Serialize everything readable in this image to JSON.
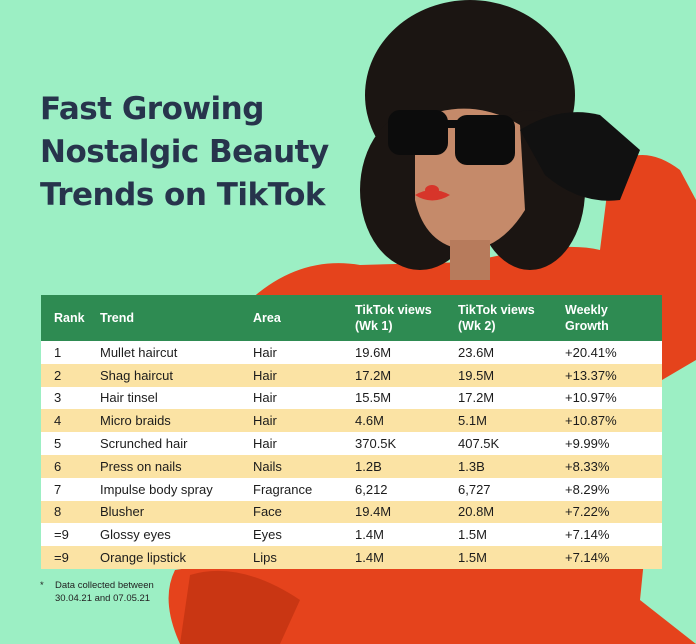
{
  "title": [
    "Fast Growing",
    "Nostalgic Beauty",
    "Trends on TikTok"
  ],
  "colors": {
    "background": "#9cefc4",
    "header": "#2e8b52",
    "row_alt": "#fbe3a4",
    "title": "#27344c"
  },
  "chart_data": {
    "type": "table",
    "columns": [
      "Rank",
      "Trend",
      "Area",
      "TikTok views (Wk 1)",
      "TikTok views (Wk 2)",
      "Weekly Growth"
    ],
    "rows": [
      [
        "1",
        "Mullet haircut",
        "Hair",
        "19.6M",
        "23.6M",
        "+20.41%"
      ],
      [
        "2",
        "Shag haircut",
        "Hair",
        "17.2M",
        "19.5M",
        "+13.37%"
      ],
      [
        "3",
        "Hair tinsel",
        "Hair",
        "15.5M",
        "17.2M",
        "+10.97%"
      ],
      [
        "4",
        "Micro braids",
        "Hair",
        "4.6M",
        "5.1M",
        "+10.87%"
      ],
      [
        "5",
        "Scrunched hair",
        "Hair",
        "370.5K",
        "407.5K",
        "+9.99%"
      ],
      [
        "6",
        "Press on nails",
        "Nails",
        "1.2B",
        "1.3B",
        "+8.33%"
      ],
      [
        "7",
        "Impulse body spray",
        "Fragrance",
        "6,212",
        "6,727",
        "+8.29%"
      ],
      [
        "8",
        "Blusher",
        "Face",
        "19.4M",
        "20.8M",
        "+7.22%"
      ],
      [
        "=9",
        "Glossy eyes",
        "Eyes",
        "1.4M",
        "1.5M",
        "+7.14%"
      ],
      [
        "=9",
        "Orange lipstick",
        "Lips",
        "1.4M",
        "1.5M",
        "+7.14%"
      ]
    ]
  },
  "footnote": {
    "marker": "*",
    "text": [
      "Data collected between",
      "30.04.21  and 07.05.21"
    ]
  }
}
